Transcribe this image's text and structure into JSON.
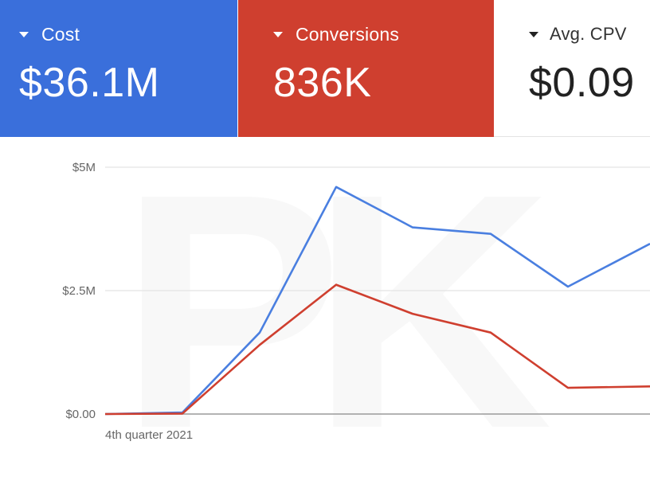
{
  "metrics": {
    "cost": {
      "label": "Cost",
      "value": "$36.1M",
      "color": "#3a6fdb"
    },
    "conversions": {
      "label": "Conversions",
      "value": "836K",
      "color": "#cf3f2f"
    },
    "avg_cpv": {
      "label": "Avg. CPV",
      "value": "$0.09",
      "color": "#ffffff"
    }
  },
  "chart_data": {
    "type": "line",
    "y_ticks": [
      "$5M",
      "$2.5M",
      "$0.00"
    ],
    "x_tick_label": "4th quarter 2021",
    "ylim": [
      0,
      5000000
    ],
    "grid": true,
    "series": [
      {
        "color": "#4a7fe0",
        "values": [
          0,
          30000,
          1650000,
          4600000,
          3780000,
          3650000,
          2580000,
          3450000
        ]
      },
      {
        "color": "#cf3f2f",
        "values": [
          0,
          10000,
          1400000,
          2620000,
          2030000,
          1650000,
          530000,
          560000
        ]
      }
    ]
  }
}
